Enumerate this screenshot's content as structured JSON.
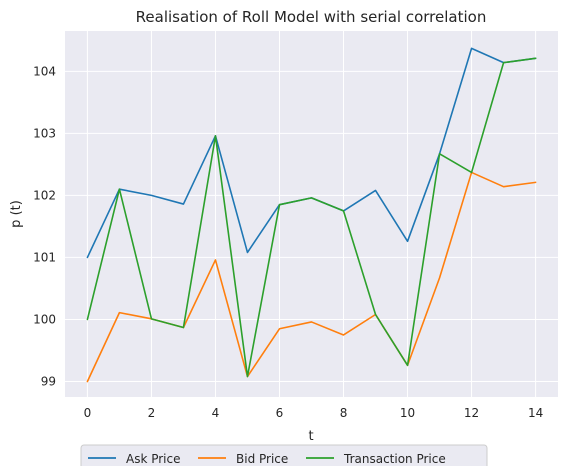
{
  "chart_data": {
    "type": "line",
    "title": "Realisation of Roll Model with serial correlation",
    "xlabel": "t",
    "ylabel": "p (t)",
    "x": [
      0,
      1,
      2,
      3,
      4,
      5,
      6,
      7,
      8,
      9,
      10,
      11,
      12,
      13,
      14
    ],
    "xticks": [
      "0",
      "2",
      "4",
      "6",
      "8",
      "10",
      "12",
      "14"
    ],
    "yticks": [
      "99",
      "100",
      "101",
      "102",
      "103",
      "104"
    ],
    "xlim": [
      -0.7,
      14.7
    ],
    "ylim": [
      98.75,
      104.65
    ],
    "grid": true,
    "legend_position": "bottom-center",
    "series": [
      {
        "name": "Ask Price",
        "color": "#1f77b4",
        "values": [
          101.0,
          102.1,
          102.0,
          101.86,
          102.96,
          101.08,
          101.85,
          101.96,
          101.75,
          102.08,
          101.26,
          102.67,
          104.37,
          104.14,
          104.21
        ]
      },
      {
        "name": "Bid Price",
        "color": "#ff7f0e",
        "values": [
          99.0,
          100.11,
          100.01,
          99.87,
          100.96,
          99.08,
          99.85,
          99.96,
          99.75,
          100.08,
          99.26,
          100.67,
          102.37,
          102.14,
          102.21
        ]
      },
      {
        "name": "Transaction Price",
        "color": "#2ca02c",
        "values": [
          100.0,
          102.1,
          100.01,
          99.87,
          102.96,
          99.08,
          101.85,
          101.96,
          101.75,
          100.08,
          99.26,
          102.67,
          102.37,
          104.14,
          104.21
        ]
      }
    ]
  }
}
